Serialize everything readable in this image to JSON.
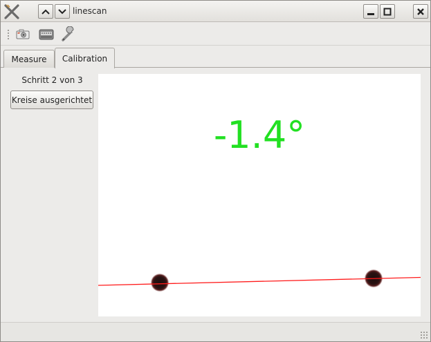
{
  "window": {
    "title": "linescan",
    "icons": {
      "app": "xfce-x-icon",
      "shade_up": "chevron-up-icon",
      "shade_down": "chevron-down-icon",
      "minimize": "minimize-icon",
      "maximize": "maximize-icon",
      "close": "close-icon"
    }
  },
  "toolbar": {
    "items": [
      {
        "name": "camera-icon"
      },
      {
        "name": "scanner-device-icon"
      },
      {
        "name": "wrench-calibrate-icon"
      }
    ]
  },
  "tabs": [
    {
      "label": "Measure",
      "active": false
    },
    {
      "label": "Calibration",
      "active": true
    }
  ],
  "calibration": {
    "step_text": "Schritt 2 von 3",
    "button_label": "Kreise ausgerichtet",
    "angle_readout": "-1.4°",
    "colors": {
      "angle_text": "#22e022",
      "fit_line": "#ff1a1a",
      "marker": "#3a1a1a"
    }
  }
}
